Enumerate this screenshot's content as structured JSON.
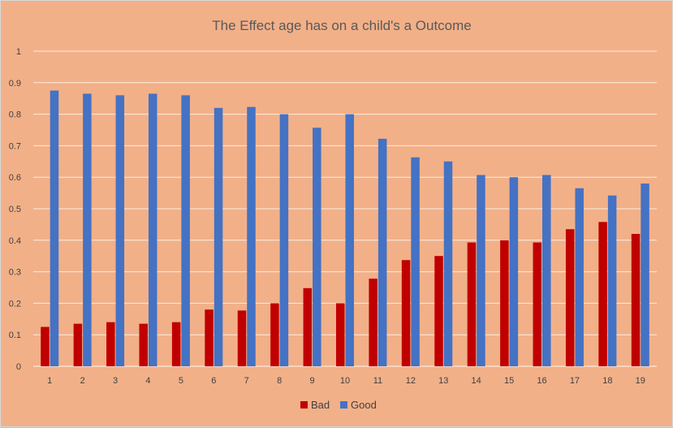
{
  "chart_data": {
    "type": "bar",
    "title": "The Effect age has on a child's  a Outcome",
    "xlabel": "",
    "ylabel": "",
    "categories": [
      "1",
      "2",
      "3",
      "4",
      "5",
      "6",
      "7",
      "8",
      "9",
      "10",
      "11",
      "12",
      "13",
      "14",
      "15",
      "16",
      "17",
      "18",
      "19"
    ],
    "series": [
      {
        "name": "Bad",
        "color": "#c00000",
        "values": [
          0.125,
          0.135,
          0.14,
          0.135,
          0.14,
          0.18,
          0.177,
          0.2,
          0.248,
          0.2,
          0.278,
          0.337,
          0.35,
          0.393,
          0.4,
          0.393,
          0.435,
          0.458,
          0.42
        ]
      },
      {
        "name": "Good",
        "color": "#4472c4",
        "values": [
          0.875,
          0.865,
          0.86,
          0.865,
          0.86,
          0.82,
          0.823,
          0.8,
          0.757,
          0.8,
          0.722,
          0.663,
          0.65,
          0.607,
          0.6,
          0.607,
          0.565,
          0.542,
          0.58
        ]
      }
    ],
    "ylim": [
      0,
      1
    ],
    "yticks": [
      "0",
      "0.1",
      "0.2",
      "0.3",
      "0.4",
      "0.5",
      "0.6",
      "0.7",
      "0.8",
      "0.9",
      "1"
    ],
    "grid": true,
    "legend": "bottom"
  }
}
